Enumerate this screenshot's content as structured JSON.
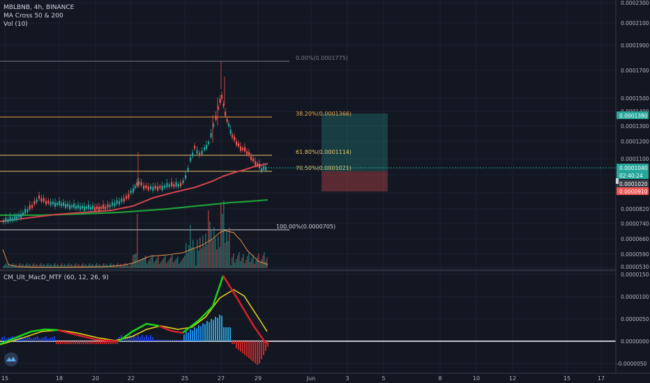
{
  "legend": {
    "symbol_line": "MBLBNB, 4h, BINANCE",
    "indicator_1": "MA Cross 50 & 200",
    "indicator_2": "Vol (10)",
    "macd_title": "CM_Ult_MacD_MTF (60, 12, 26, 9)"
  },
  "price_axis": {
    "ticks": [
      "0.0002300",
      "0.0002100",
      "0.0001900",
      "0.0001700",
      "0.0001500",
      "0.0001400",
      "0.0001300",
      "0.0001200",
      "0.0001100",
      "0.0001000",
      "0.0000910",
      "0.0000820",
      "0.0000740",
      "0.0000660",
      "0.0000590",
      "0.0000530"
    ],
    "badges": [
      {
        "text": "0.0001380",
        "bg": "#26a69a"
      },
      {
        "text": "0.0001040",
        "bg": "#26a69a"
      },
      {
        "text": "02:40:24",
        "bg": "#26a69a"
      },
      {
        "text": "0.0001020",
        "bg": "#363a45"
      },
      {
        "text": "0.0000910",
        "bg": "#ef5350"
      }
    ]
  },
  "macd_axis": {
    "ticks": [
      "0.0000150",
      "0.0000100",
      "0.0000050",
      "0.0000000",
      "-0.0000050"
    ]
  },
  "time_axis": {
    "ticks": [
      "15",
      "18",
      "20",
      "22",
      "25",
      "27",
      "29",
      "Jun",
      "3",
      "5",
      "8",
      "10",
      "12",
      "15",
      "17"
    ]
  },
  "fib_levels": [
    {
      "label": "0.00%(0.0001775)",
      "color": "#787b86"
    },
    {
      "label": "38.20%(0.0001366)",
      "color": "#f0a64a"
    },
    {
      "label": "61.80%(0.0001114)",
      "color": "#e9c46a"
    },
    {
      "label": "70.50%(0.0001021)",
      "color": "#e9c46a"
    },
    {
      "label": "100.00%(0.0000705)",
      "color": "#d1d4dc"
    }
  ],
  "chart_data": {
    "type": "candlestick",
    "title": "MBLBNB, 4h, BINANCE",
    "y_scale": "log",
    "ylim": [
      5.3e-05,
      0.00023
    ],
    "x_labels": [
      "15",
      "18",
      "20",
      "22",
      "25",
      "27",
      "29",
      "Jun",
      "3",
      "5",
      "8",
      "10",
      "12",
      "15",
      "17"
    ],
    "close_approx": [
      7.4e-05,
      7.6e-05,
      8e-05,
      8.3e-05,
      8.1e-05,
      7.9e-05,
      8e-05,
      7.8e-05,
      8.2e-05,
      8.5e-05,
      9.1e-05,
      9.3e-05,
      9e-05,
      9.2e-05,
      9.1e-05,
      9.4e-05,
      0.00011,
      0.000118,
      0.000126,
      0.00015,
      0.000145,
      0.00013,
      0.00012,
      0.00011,
      0.000102,
      0.000104
    ],
    "fibonacci": [
      {
        "level": "0.00%",
        "price": 0.0001775
      },
      {
        "level": "38.20%",
        "price": 0.0001366
      },
      {
        "level": "61.80%",
        "price": 0.0001114
      },
      {
        "level": "70.50%",
        "price": 0.0001021
      },
      {
        "level": "100.00%",
        "price": 7.05e-05
      }
    ],
    "position": {
      "entry": 0.000102,
      "target": 0.000138,
      "stop": 9.1e-05
    },
    "last_price": 0.000104,
    "macd_ylim": [
      -6.5e-06,
      1.65e-05
    ]
  },
  "colors": {
    "up": "#26a69a",
    "down": "#ef5350",
    "ma50": "#d4444c",
    "ma200": "#1f9d3a",
    "macd_line": "#19d219",
    "signal": "#e6d21a"
  }
}
